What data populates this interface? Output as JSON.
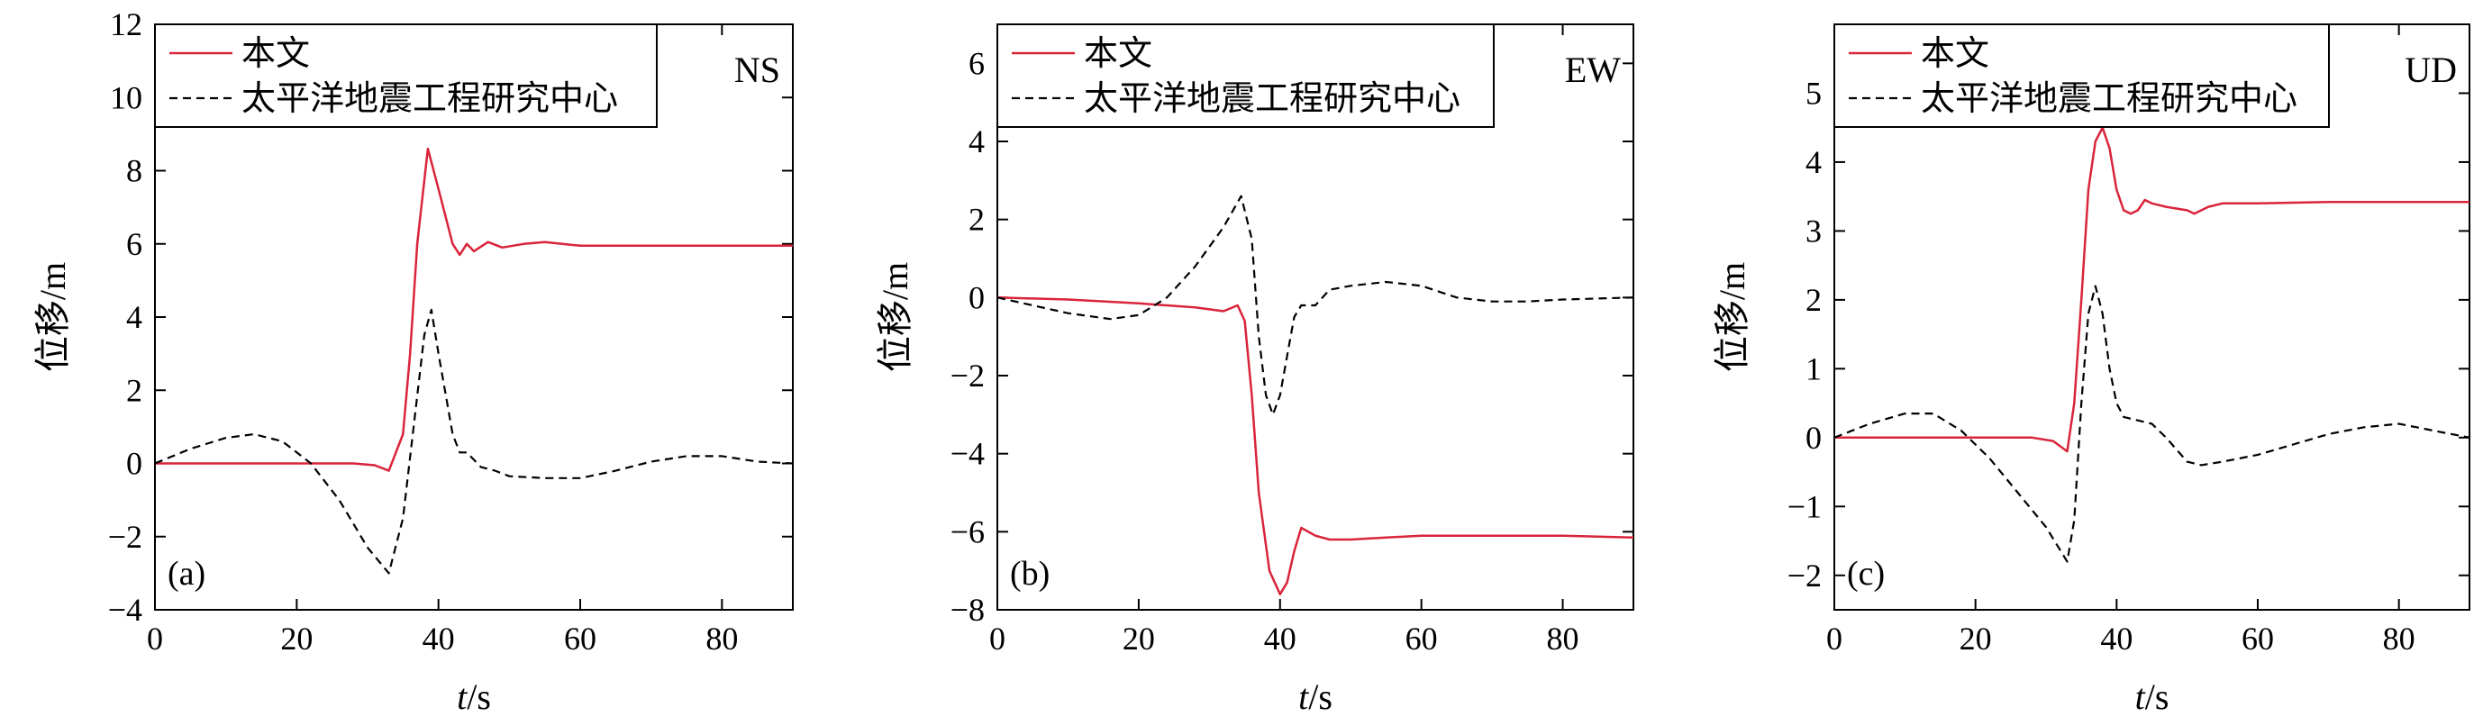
{
  "legend_entries": [
    "本文",
    "太平洋地震工程研究中心"
  ],
  "ylabel": "位移/m",
  "xlabel_italic": "t",
  "xlabel_rest": "/s",
  "colors": {
    "this_paper": "#d9243a",
    "peer": "#000000"
  },
  "chart_data": [
    {
      "type": "line",
      "panel_label": "(a)",
      "component": "NS",
      "xlim": [
        0,
        90
      ],
      "ylim": [
        -4,
        12
      ],
      "xticks": [
        0,
        20,
        40,
        60,
        80
      ],
      "yticks": [
        -4,
        -2,
        0,
        2,
        4,
        6,
        8,
        10,
        12
      ],
      "series": [
        {
          "name": "本文",
          "style": "solid",
          "points": [
            [
              0,
              0
            ],
            [
              10,
              0
            ],
            [
              20,
              0
            ],
            [
              28,
              0
            ],
            [
              31,
              -0.05
            ],
            [
              33,
              -0.2
            ],
            [
              35,
              0.8
            ],
            [
              36,
              3
            ],
            [
              37,
              6
            ],
            [
              38.5,
              8.6
            ],
            [
              40,
              7.5
            ],
            [
              42,
              6
            ],
            [
              43,
              5.7
            ],
            [
              44,
              6.0
            ],
            [
              45,
              5.8
            ],
            [
              47,
              6.05
            ],
            [
              49,
              5.9
            ],
            [
              52,
              6.0
            ],
            [
              55,
              6.05
            ],
            [
              60,
              5.95
            ],
            [
              65,
              5.95
            ],
            [
              70,
              5.95
            ],
            [
              75,
              5.95
            ],
            [
              80,
              5.95
            ],
            [
              85,
              5.95
            ],
            [
              90,
              5.95
            ]
          ]
        },
        {
          "name": "太平洋地震工程研究中心",
          "style": "dashed",
          "points": [
            [
              0,
              0
            ],
            [
              5,
              0.4
            ],
            [
              10,
              0.7
            ],
            [
              14,
              0.8
            ],
            [
              18,
              0.6
            ],
            [
              22,
              0
            ],
            [
              26,
              -1
            ],
            [
              30,
              -2.3
            ],
            [
              33,
              -3
            ],
            [
              35,
              -1.5
            ],
            [
              36.5,
              1
            ],
            [
              38,
              3.5
            ],
            [
              39,
              4.2
            ],
            [
              40,
              3
            ],
            [
              42,
              0.8
            ],
            [
              43,
              0.3
            ],
            [
              44,
              0.3
            ],
            [
              46,
              -0.1
            ],
            [
              48,
              -0.2
            ],
            [
              50,
              -0.35
            ],
            [
              55,
              -0.4
            ],
            [
              60,
              -0.4
            ],
            [
              65,
              -0.2
            ],
            [
              70,
              0.05
            ],
            [
              75,
              0.2
            ],
            [
              80,
              0.2
            ],
            [
              85,
              0.05
            ],
            [
              90,
              0
            ]
          ]
        }
      ]
    },
    {
      "type": "line",
      "panel_label": "(b)",
      "component": "EW",
      "xlim": [
        0,
        90
      ],
      "ylim": [
        -8,
        7
      ],
      "xticks": [
        0,
        20,
        40,
        60,
        80
      ],
      "yticks": [
        -8,
        -6,
        -4,
        -2,
        0,
        2,
        4,
        6
      ],
      "series": [
        {
          "name": "本文",
          "style": "solid",
          "points": [
            [
              0,
              0
            ],
            [
              10,
              -0.05
            ],
            [
              20,
              -0.15
            ],
            [
              28,
              -0.25
            ],
            [
              32,
              -0.35
            ],
            [
              34,
              -0.2
            ],
            [
              35,
              -0.6
            ],
            [
              36,
              -2.5
            ],
            [
              37,
              -5
            ],
            [
              38.5,
              -7
            ],
            [
              40,
              -7.6
            ],
            [
              41,
              -7.3
            ],
            [
              42,
              -6.5
            ],
            [
              43,
              -5.9
            ],
            [
              45,
              -6.1
            ],
            [
              47,
              -6.2
            ],
            [
              50,
              -6.2
            ],
            [
              55,
              -6.15
            ],
            [
              60,
              -6.1
            ],
            [
              70,
              -6.1
            ],
            [
              80,
              -6.1
            ],
            [
              90,
              -6.15
            ]
          ]
        },
        {
          "name": "太平洋地震工程研究中心",
          "style": "dashed",
          "points": [
            [
              0,
              0
            ],
            [
              5,
              -0.2
            ],
            [
              10,
              -0.4
            ],
            [
              16,
              -0.55
            ],
            [
              20,
              -0.45
            ],
            [
              24,
              0
            ],
            [
              28,
              0.8
            ],
            [
              32,
              1.8
            ],
            [
              34.5,
              2.6
            ],
            [
              36,
              1.5
            ],
            [
              37,
              -1
            ],
            [
              38,
              -2.5
            ],
            [
              39,
              -3
            ],
            [
              40,
              -2.5
            ],
            [
              41,
              -1.5
            ],
            [
              42,
              -0.5
            ],
            [
              43,
              -0.2
            ],
            [
              45,
              -0.2
            ],
            [
              47,
              0.2
            ],
            [
              50,
              0.3
            ],
            [
              55,
              0.4
            ],
            [
              60,
              0.3
            ],
            [
              65,
              0
            ],
            [
              70,
              -0.1
            ],
            [
              75,
              -0.1
            ],
            [
              80,
              -0.05
            ],
            [
              90,
              0
            ]
          ]
        }
      ]
    },
    {
      "type": "line",
      "panel_label": "(c)",
      "component": "UD",
      "xlim": [
        0,
        90
      ],
      "ylim": [
        -2.5,
        6
      ],
      "xticks": [
        0,
        20,
        40,
        60,
        80
      ],
      "yticks": [
        -2,
        -1,
        0,
        1,
        2,
        3,
        4,
        5
      ],
      "series": [
        {
          "name": "本文",
          "style": "solid",
          "points": [
            [
              0,
              0
            ],
            [
              10,
              0
            ],
            [
              20,
              0
            ],
            [
              28,
              0
            ],
            [
              31,
              -0.05
            ],
            [
              33,
              -0.2
            ],
            [
              34,
              0.5
            ],
            [
              35,
              2
            ],
            [
              36,
              3.6
            ],
            [
              37,
              4.3
            ],
            [
              38,
              4.5
            ],
            [
              39,
              4.2
            ],
            [
              40,
              3.6
            ],
            [
              41,
              3.3
            ],
            [
              42,
              3.25
            ],
            [
              43,
              3.3
            ],
            [
              44,
              3.45
            ],
            [
              45,
              3.4
            ],
            [
              47,
              3.35
            ],
            [
              50,
              3.3
            ],
            [
              51,
              3.25
            ],
            [
              53,
              3.35
            ],
            [
              55,
              3.4
            ],
            [
              60,
              3.4
            ],
            [
              70,
              3.42
            ],
            [
              80,
              3.42
            ],
            [
              90,
              3.42
            ]
          ]
        },
        {
          "name": "太平洋地震工程研究中心",
          "style": "dashed",
          "points": [
            [
              0,
              0
            ],
            [
              5,
              0.2
            ],
            [
              10,
              0.35
            ],
            [
              14,
              0.35
            ],
            [
              18,
              0.1
            ],
            [
              22,
              -0.3
            ],
            [
              26,
              -0.8
            ],
            [
              30,
              -1.3
            ],
            [
              33,
              -1.8
            ],
            [
              34,
              -1.2
            ],
            [
              35,
              0.5
            ],
            [
              36,
              1.8
            ],
            [
              37,
              2.2
            ],
            [
              38,
              1.8
            ],
            [
              39,
              1
            ],
            [
              40,
              0.5
            ],
            [
              41,
              0.3
            ],
            [
              43,
              0.25
            ],
            [
              45,
              0.2
            ],
            [
              47,
              0
            ],
            [
              50,
              -0.35
            ],
            [
              52,
              -0.4
            ],
            [
              55,
              -0.35
            ],
            [
              60,
              -0.25
            ],
            [
              65,
              -0.1
            ],
            [
              70,
              0.05
            ],
            [
              75,
              0.15
            ],
            [
              80,
              0.2
            ],
            [
              85,
              0.1
            ],
            [
              90,
              0
            ]
          ]
        }
      ]
    }
  ]
}
